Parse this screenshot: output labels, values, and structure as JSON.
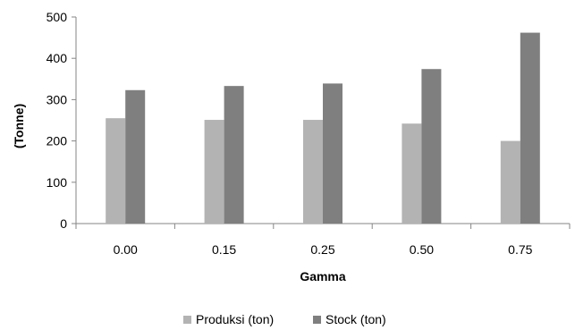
{
  "chart_data": {
    "type": "bar",
    "title": "",
    "xlabel": "Gamma",
    "ylabel": "(Tonne)",
    "categories": [
      "0.00",
      "0.15",
      "0.25",
      "0.50",
      "0.75"
    ],
    "series": [
      {
        "name": "Produksi (ton)",
        "color": "#b3b3b3",
        "values": [
          255,
          251,
          251,
          242,
          200
        ]
      },
      {
        "name": "Stock (ton)",
        "color": "#7f7f7f",
        "values": [
          323,
          333,
          339,
          374,
          462
        ]
      }
    ],
    "ylim": [
      0,
      500
    ],
    "yticks": [
      "0",
      "100",
      "200",
      "300",
      "400",
      "500"
    ],
    "grid": false,
    "legend_position": "bottom"
  }
}
